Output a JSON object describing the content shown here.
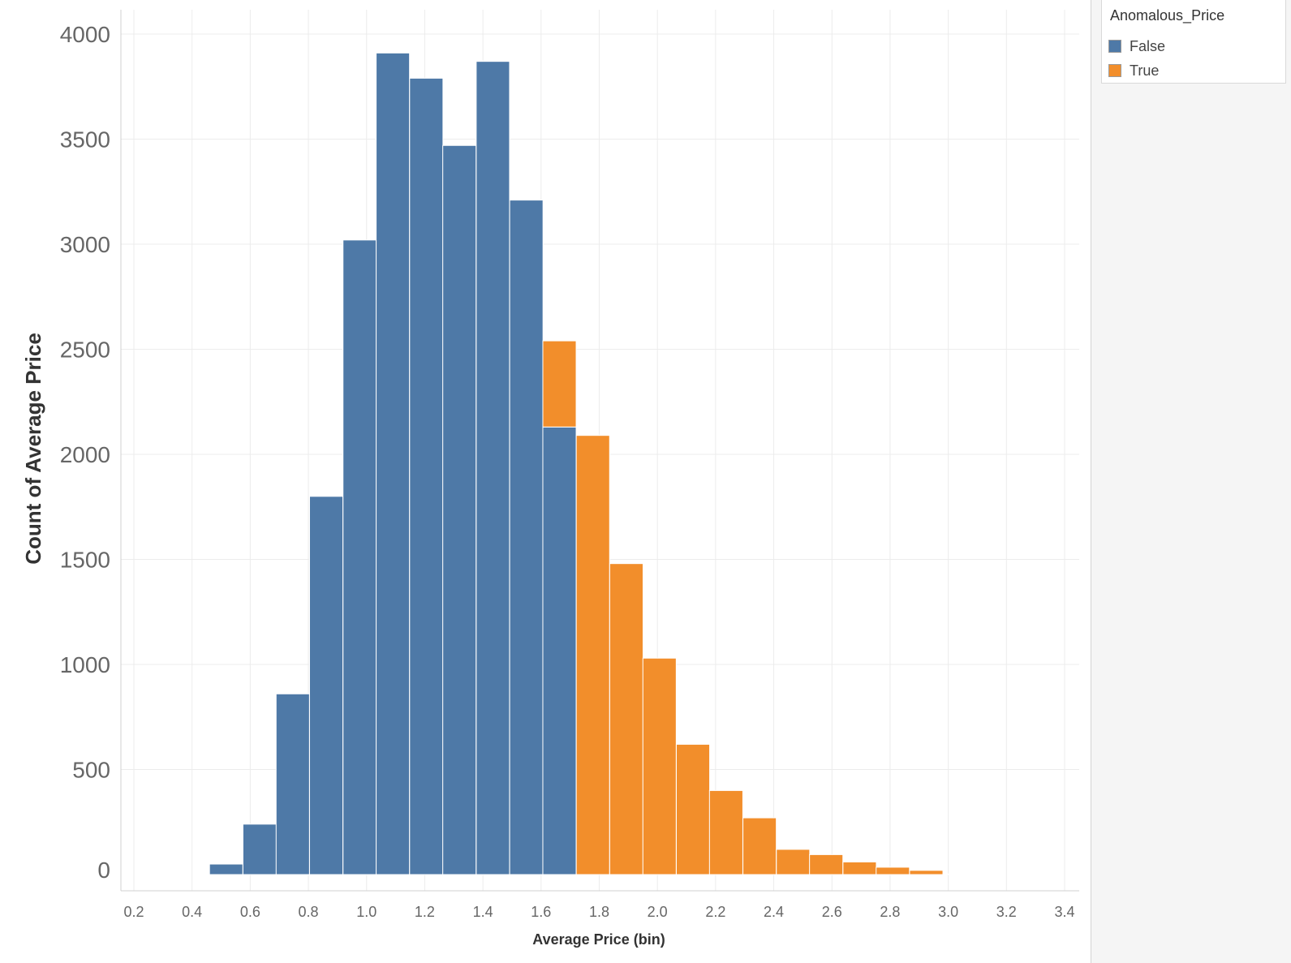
{
  "chart_data": {
    "type": "bar",
    "subtype": "histogram-stacked",
    "xlabel": "Average Price (bin)",
    "ylabel": "Count of Average Price",
    "bin_width": 0.1146,
    "x_range": [
      0.15,
      3.45
    ],
    "y_range": [
      -80,
      4120
    ],
    "x_ticks": [
      "0.2",
      "0.4",
      "0.6",
      "0.8",
      "1.0",
      "1.2",
      "1.4",
      "1.6",
      "1.8",
      "2.0",
      "2.2",
      "2.4",
      "2.6",
      "2.8",
      "3.0",
      "3.2",
      "3.4"
    ],
    "y_ticks": [
      "0",
      "500",
      "1000",
      "1500",
      "2000",
      "2500",
      "3000",
      "3500",
      "4000"
    ],
    "grid": true,
    "legend_position": "right",
    "legend_title": "Anomalous_Price",
    "series": [
      {
        "name": "False",
        "color": "#4e79a7",
        "bins": [
          {
            "x": 0.46,
            "value": 50
          },
          {
            "x": 0.575,
            "value": 240
          },
          {
            "x": 0.689,
            "value": 860
          },
          {
            "x": 0.804,
            "value": 1800
          },
          {
            "x": 0.919,
            "value": 3020
          },
          {
            "x": 1.033,
            "value": 3910
          },
          {
            "x": 1.148,
            "value": 3790
          },
          {
            "x": 1.262,
            "value": 3470
          },
          {
            "x": 1.377,
            "value": 3870
          },
          {
            "x": 1.492,
            "value": 3210
          },
          {
            "x": 1.606,
            "value": 2130
          }
        ]
      },
      {
        "name": "True",
        "color": "#f28e2b",
        "bins": [
          {
            "x": 1.606,
            "value": 410
          },
          {
            "x": 1.721,
            "value": 2090
          },
          {
            "x": 1.836,
            "value": 1480
          },
          {
            "x": 1.95,
            "value": 1030
          },
          {
            "x": 2.065,
            "value": 620
          },
          {
            "x": 2.179,
            "value": 400
          },
          {
            "x": 2.294,
            "value": 270
          },
          {
            "x": 2.409,
            "value": 120
          },
          {
            "x": 2.523,
            "value": 95
          },
          {
            "x": 2.638,
            "value": 60
          },
          {
            "x": 2.752,
            "value": 35
          },
          {
            "x": 2.867,
            "value": 20
          },
          {
            "x": 2.982,
            "value": 3
          }
        ]
      }
    ]
  }
}
